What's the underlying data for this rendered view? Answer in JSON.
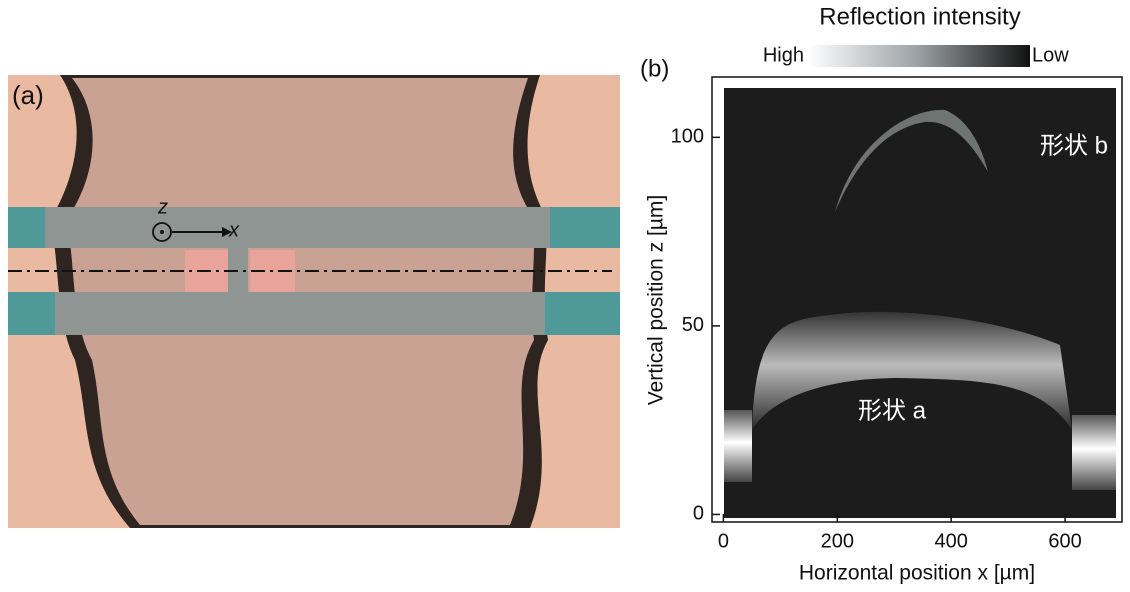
{
  "panel_a": {
    "label": "(a)",
    "axis_z": "z",
    "axis_x": "x"
  },
  "chart_data": {
    "type": "image",
    "panel_label": "(b)",
    "colorbar": {
      "title": "Reflection intensity",
      "high_label": "High",
      "low_label": "Low"
    },
    "xlabel": "Horizontal position x [µm]",
    "ylabel": "Vertical position z [µm]",
    "xlim": [
      -20,
      700
    ],
    "ylim": [
      -2,
      116
    ],
    "xticks": [
      0,
      200,
      400,
      600
    ],
    "yticks": [
      0,
      50,
      100
    ],
    "annotations": [
      "形状 b",
      "形状 a"
    ]
  }
}
